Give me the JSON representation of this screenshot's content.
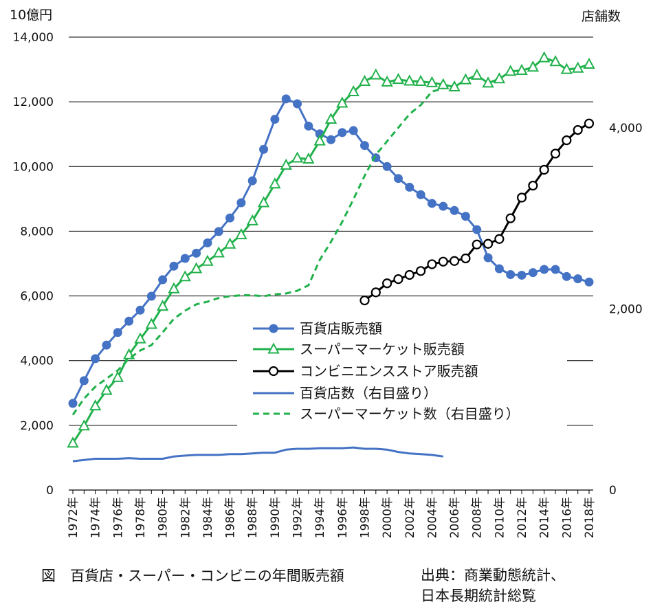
{
  "caption": {
    "figure_title": "図　百貨店・スーパー・コンビニの年間販売額",
    "source_line1": "出典：商業動態統計、",
    "source_line2": "日本長期統計総覧"
  },
  "chart_data": {
    "type": "line",
    "left_unit": "10億円",
    "right_unit": "店舗数",
    "left_ylim": [
      0,
      14000
    ],
    "right_ylim": [
      0,
      5000
    ],
    "left_ticks": [
      "0",
      "2,000",
      "4,000",
      "6,000",
      "8,000",
      "10,000",
      "12,000",
      "14,000"
    ],
    "right_ticks": [
      "0",
      "2,000",
      "4,000"
    ],
    "x_tick_labels": [
      "1972年",
      "1974年",
      "1976年",
      "1978年",
      "1980年",
      "1982年",
      "1984年",
      "1986年",
      "1988年",
      "1990年",
      "1992年",
      "1994年",
      "1996年",
      "1998年",
      "2000年",
      "2002年",
      "2004年",
      "2006年",
      "2008年",
      "2010年",
      "2012年",
      "2014年",
      "2016年",
      "2018年"
    ],
    "grid": true,
    "legend_placement": "center",
    "colors": {
      "blue": "#4472C4",
      "green": "#21B14B",
      "black": "#000000"
    },
    "series": [
      {
        "name": "百貨店販売額",
        "axis": "left",
        "color": "#4472C4",
        "style": "solid",
        "marker": "circle",
        "x": [
          1972,
          1973,
          1974,
          1975,
          1976,
          1977,
          1978,
          1979,
          1980,
          1981,
          1982,
          1983,
          1984,
          1985,
          1986,
          1987,
          1988,
          1989,
          1990,
          1991,
          1992,
          1993,
          1994,
          1995,
          1996,
          1997,
          1998,
          1999,
          2000,
          2001,
          2002,
          2003,
          2004,
          2005,
          2006,
          2007,
          2008,
          2009,
          2010,
          2011,
          2012,
          2013,
          2014,
          2015,
          2016,
          2017,
          2018
        ],
        "values": [
          2680,
          3380,
          4060,
          4480,
          4870,
          5220,
          5560,
          5990,
          6500,
          6920,
          7160,
          7320,
          7640,
          7990,
          8410,
          8880,
          9560,
          10530,
          11460,
          12090,
          11940,
          11250,
          11010,
          10830,
          11050,
          11110,
          10650,
          10270,
          10000,
          9630,
          9360,
          9130,
          8860,
          8770,
          8640,
          8460,
          8050,
          7180,
          6840,
          6660,
          6640,
          6720,
          6820,
          6820,
          6600,
          6530,
          6430
        ]
      },
      {
        "name": "スーパーマーケット販売額",
        "axis": "left",
        "color": "#21B14B",
        "style": "solid",
        "marker": "triangle",
        "x": [
          1972,
          1973,
          1974,
          1975,
          1976,
          1977,
          1978,
          1979,
          1980,
          1981,
          1982,
          1983,
          1984,
          1985,
          1986,
          1987,
          1988,
          1989,
          1990,
          1991,
          1992,
          1993,
          1994,
          1995,
          1996,
          1997,
          1998,
          1999,
          2000,
          2001,
          2002,
          2003,
          2004,
          2005,
          2006,
          2007,
          2008,
          2009,
          2010,
          2011,
          2012,
          2013,
          2014,
          2015,
          2016,
          2017,
          2018
        ],
        "values": [
          1450,
          1980,
          2600,
          3080,
          3480,
          4180,
          4670,
          5120,
          5680,
          6220,
          6590,
          6840,
          7070,
          7330,
          7600,
          7890,
          8320,
          8880,
          9460,
          10040,
          10260,
          10230,
          10790,
          11460,
          11960,
          12310,
          12630,
          12830,
          12610,
          12690,
          12640,
          12630,
          12590,
          12530,
          12460,
          12680,
          12820,
          12580,
          12710,
          12940,
          12970,
          13070,
          13360,
          13240,
          13000,
          13040,
          13160
        ]
      },
      {
        "name": "コンビニエンスストア販売額",
        "axis": "left",
        "color": "#000000",
        "style": "solid",
        "marker": "circle-open",
        "x": [
          1998,
          1999,
          2000,
          2001,
          2002,
          2003,
          2004,
          2005,
          2006,
          2007,
          2008,
          2009,
          2010,
          2011,
          2012,
          2013,
          2014,
          2015,
          2016,
          2017,
          2018
        ],
        "values": [
          5860,
          6110,
          6390,
          6520,
          6650,
          6770,
          6980,
          7060,
          7080,
          7160,
          7590,
          7610,
          7760,
          8400,
          9040,
          9410,
          9900,
          10400,
          10810,
          11130,
          11330
        ]
      },
      {
        "name": "百貨店数（右目盛り）",
        "axis": "right",
        "color": "#4472C4",
        "style": "solid",
        "marker": "none",
        "x": [
          1972,
          1973,
          1974,
          1975,
          1976,
          1977,
          1978,
          1979,
          1980,
          1981,
          1982,
          1983,
          1984,
          1985,
          1986,
          1987,
          1988,
          1989,
          1990,
          1991,
          1992,
          1993,
          1994,
          1995,
          1996,
          1997,
          1998,
          1999,
          2000,
          2001,
          2002,
          2003,
          2004,
          2005
        ],
        "values": [
          318,
          332,
          345,
          345,
          345,
          352,
          345,
          345,
          345,
          370,
          380,
          388,
          388,
          388,
          396,
          396,
          404,
          412,
          412,
          446,
          455,
          455,
          462,
          462,
          462,
          470,
          455,
          455,
          446,
          420,
          404,
          396,
          388,
          370
        ]
      },
      {
        "name": "スーパーマーケット数（右目盛り）",
        "axis": "right",
        "color": "#21B14B",
        "style": "dashed",
        "marker": "none",
        "x": [
          1972,
          1973,
          1974,
          1975,
          1976,
          1977,
          1978,
          1979,
          1980,
          1981,
          1982,
          1983,
          1984,
          1985,
          1986,
          1987,
          1988,
          1989,
          1990,
          1991,
          1992,
          1993,
          1994,
          1995,
          1996,
          1997,
          1998,
          1999,
          2000,
          2001,
          2002,
          2003,
          2004,
          2005
        ],
        "values": [
          830,
          1010,
          1140,
          1230,
          1320,
          1450,
          1540,
          1600,
          1740,
          1890,
          1980,
          2050,
          2080,
          2120,
          2140,
          2150,
          2150,
          2140,
          2160,
          2170,
          2200,
          2260,
          2540,
          2740,
          2960,
          3210,
          3470,
          3700,
          3850,
          4000,
          4150,
          4250,
          4400,
          4430
        ]
      }
    ]
  }
}
